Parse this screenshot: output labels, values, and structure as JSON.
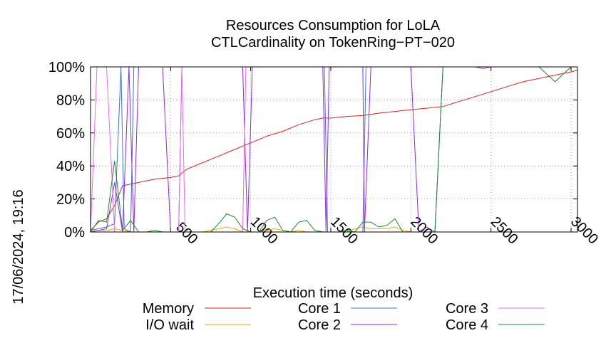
{
  "chart_data": {
    "type": "line",
    "title": [
      "Resources Consumption for LoLA",
      "CTLCardinality on TokenRing−PT−020"
    ],
    "xlabel": "Execution time (seconds)",
    "ylabel": "",
    "timestamp": "17/06/2024, 19:16",
    "xlim": [
      0,
      3040
    ],
    "ylim": [
      0,
      100
    ],
    "x_ticks": [
      500,
      1000,
      1500,
      2000,
      2500,
      3000
    ],
    "y_ticks": [
      0,
      20,
      40,
      60,
      80,
      100
    ],
    "y_tick_labels": [
      "0%",
      "20%",
      "40%",
      "60%",
      "80%",
      "100%"
    ],
    "grid": true,
    "legend_placement": "bottom",
    "series": [
      {
        "name": "Memory",
        "color": "#e0201b",
        "x": [
          0,
          50,
          100,
          150,
          200,
          250,
          300,
          400,
          500,
          550,
          600,
          700,
          800,
          900,
          1000,
          1100,
          1200,
          1300,
          1400,
          1450,
          1500,
          1600,
          1700,
          1800,
          1900,
          2000,
          2100,
          2200,
          2300,
          2400,
          2500,
          2600,
          2700,
          2800,
          2900,
          3000,
          3040
        ],
        "y": [
          1,
          6,
          8,
          16,
          28,
          29,
          30,
          32,
          33,
          34,
          38,
          42,
          46,
          50,
          54,
          58,
          61,
          65,
          68,
          69,
          69,
          70,
          70.5,
          72,
          73,
          74,
          75,
          76,
          79,
          82,
          85,
          88,
          91,
          93,
          95,
          97,
          98
        ]
      },
      {
        "name": "I/O wait",
        "color": "#ffa500",
        "x": [
          0,
          50,
          100,
          150,
          200,
          250,
          300,
          350,
          400,
          450,
          500,
          550,
          600,
          700,
          750,
          800,
          850,
          900,
          950,
          1000,
          1050,
          1100,
          1150,
          1200,
          1250,
          1300,
          1350,
          1400,
          1450,
          1500,
          1550,
          1600,
          1650,
          1700,
          1750,
          1800,
          1850,
          1900,
          1950,
          2000,
          2050,
          2100,
          2150,
          2200,
          3040
        ],
        "y": [
          0,
          1,
          1,
          2,
          1,
          0,
          0,
          0,
          0,
          0,
          0,
          0,
          0,
          0,
          1,
          2,
          3,
          2,
          0,
          0,
          0,
          1,
          2,
          1,
          0,
          1,
          0,
          0,
          0,
          0,
          0,
          0,
          2,
          3,
          2,
          2,
          2,
          3,
          1,
          0,
          0,
          0,
          0,
          0,
          0
        ]
      },
      {
        "name": "Core 1",
        "color": "#3f6fd6",
        "x": [
          0,
          50,
          100,
          150,
          190,
          210,
          250,
          270,
          300,
          500,
          1000,
          1400,
          1460,
          1480,
          1500,
          1550,
          1600,
          1650,
          1700,
          1720,
          1750,
          2000,
          2500,
          3040
        ],
        "y": [
          1,
          2,
          3,
          5,
          100,
          2,
          0,
          100,
          100,
          100,
          100,
          100,
          100,
          0,
          0,
          0,
          0,
          0,
          0,
          100,
          100,
          100,
          100,
          100
        ]
      },
      {
        "name": "Core 2",
        "color": "#8a2be2",
        "x": [
          0,
          50,
          100,
          150,
          200,
          240,
          270,
          300,
          400,
          450,
          500,
          550,
          570,
          600,
          700,
          800,
          900,
          950,
          980,
          1010,
          1100,
          1200,
          1300,
          1400,
          1450,
          1470,
          1490,
          1550,
          1600,
          1650,
          1700,
          1710,
          1750,
          1800,
          1900,
          2000,
          2050,
          2100,
          2150,
          2200,
          2400,
          2450,
          2500,
          3040
        ],
        "y": [
          0,
          1,
          2,
          30,
          0,
          100,
          0,
          100,
          100,
          100,
          0,
          0,
          100,
          100,
          100,
          100,
          100,
          100,
          0,
          100,
          100,
          100,
          100,
          100,
          100,
          0,
          100,
          100,
          100,
          100,
          100,
          0,
          100,
          100,
          100,
          100,
          0,
          3,
          0,
          100,
          100,
          99,
          100,
          100
        ]
      },
      {
        "name": "Core 3",
        "color": "#ea6be8",
        "x": [
          0,
          40,
          60,
          100,
          150,
          200,
          250,
          300,
          500,
          550,
          570,
          590,
          650,
          950,
          970,
          1000,
          1010,
          1500,
          1700,
          2000,
          2500,
          3040
        ],
        "y": [
          0,
          100,
          100,
          100,
          0,
          0,
          0,
          0,
          0,
          0,
          100,
          0,
          0,
          0,
          100,
          100,
          100,
          100,
          100,
          100,
          100,
          100
        ]
      },
      {
        "name": "Core 4",
        "color": "#1f8a2a",
        "x": [
          0,
          50,
          100,
          150,
          200,
          250,
          300,
          350,
          400,
          450,
          500,
          550,
          600,
          650,
          700,
          750,
          800,
          850,
          900,
          950,
          1000,
          1050,
          1100,
          1150,
          1200,
          1250,
          1300,
          1350,
          1400,
          1450,
          1500,
          1550,
          1600,
          1650,
          1700,
          1750,
          1800,
          1850,
          1900,
          1950,
          2000,
          2050,
          2100,
          2150,
          2200,
          2500,
          2800,
          2900,
          3000,
          3040
        ],
        "y": [
          0,
          7,
          6,
          43,
          1,
          7,
          0,
          0,
          1,
          0,
          0,
          0,
          0,
          0,
          0,
          0,
          5,
          11,
          9,
          2,
          0,
          0,
          7,
          9,
          1,
          0,
          6,
          7,
          1,
          0,
          0,
          0,
          1,
          0,
          6,
          6,
          3,
          4,
          8,
          0,
          0,
          0,
          0,
          0,
          100,
          100,
          100,
          91,
          100,
          100
        ]
      }
    ]
  }
}
